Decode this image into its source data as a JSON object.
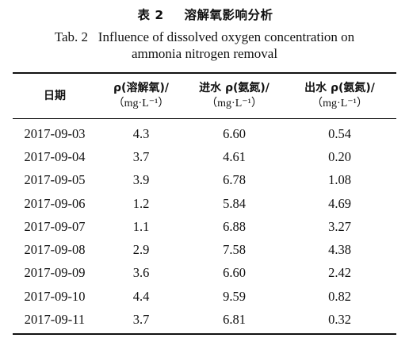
{
  "caption": {
    "cn_label": "表 2",
    "cn_title": "溶解氧影响分析",
    "en_line1": "Tab. 2   Influence of dissolved oxygen concentration on",
    "en_line2": "ammonia nitrogen removal"
  },
  "table": {
    "headers": [
      {
        "top": "日期",
        "unit": ""
      },
      {
        "top": "ρ(溶解氧)/",
        "unit": "（mg·L⁻¹）"
      },
      {
        "top": "进水 ρ(氨氮)/",
        "unit": "（mg·L⁻¹）"
      },
      {
        "top": "出水 ρ(氨氮)/",
        "unit": "（mg·L⁻¹）"
      }
    ],
    "rows": [
      [
        "2017-09-03",
        "4.3",
        "6.60",
        "0.54"
      ],
      [
        "2017-09-04",
        "3.7",
        "4.61",
        "0.20"
      ],
      [
        "2017-09-05",
        "3.9",
        "6.78",
        "1.08"
      ],
      [
        "2017-09-06",
        "1.2",
        "5.84",
        "4.69"
      ],
      [
        "2017-09-07",
        "1.1",
        "6.88",
        "3.27"
      ],
      [
        "2017-09-08",
        "2.9",
        "7.58",
        "4.38"
      ],
      [
        "2017-09-09",
        "3.6",
        "6.60",
        "2.42"
      ],
      [
        "2017-09-10",
        "4.4",
        "9.59",
        "0.82"
      ],
      [
        "2017-09-11",
        "3.7",
        "6.81",
        "0.32"
      ]
    ]
  }
}
